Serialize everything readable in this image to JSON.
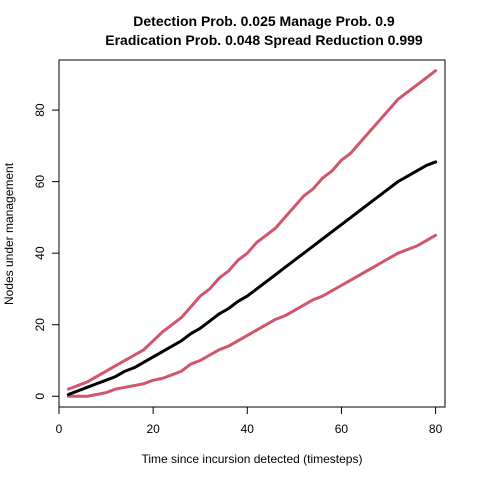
{
  "chart_data": {
    "type": "line",
    "title_lines": [
      "Detection Prob. 0.025 Manage Prob. 0.9",
      "Eradication Prob. 0.048 Spread Reduction 0.999"
    ],
    "xlabel": "Time since incursion detected (timesteps)",
    "ylabel": "Nodes under management",
    "xlim": [
      0,
      82
    ],
    "ylim": [
      -3,
      94
    ],
    "xticks": [
      0,
      20,
      40,
      60,
      80
    ],
    "yticks": [
      0,
      20,
      40,
      60,
      80
    ],
    "grid": false,
    "colors": {
      "bounds": "#D1566B",
      "median": "#000000"
    },
    "series": [
      {
        "role": "upper",
        "color": "#D1566B",
        "x": [
          2,
          4,
          6,
          8,
          10,
          12,
          14,
          16,
          18,
          20,
          22,
          24,
          26,
          28,
          30,
          32,
          34,
          36,
          38,
          40,
          42,
          44,
          46,
          48,
          50,
          52,
          54,
          56,
          58,
          60,
          62,
          64,
          66,
          68,
          70,
          72,
          74,
          76,
          78,
          80
        ],
        "values": [
          2,
          3,
          4,
          5.5,
          7,
          8.5,
          10,
          11.5,
          13,
          15.5,
          18,
          20,
          22,
          25,
          28,
          30,
          33,
          35,
          38,
          40,
          43,
          45,
          47,
          50,
          53,
          56,
          58,
          61,
          63,
          66,
          68,
          71,
          74,
          77,
          80,
          83,
          85,
          87,
          89,
          91
        ]
      },
      {
        "role": "median",
        "color": "#000000",
        "x": [
          2,
          4,
          6,
          8,
          10,
          12,
          14,
          16,
          18,
          20,
          22,
          24,
          26,
          28,
          30,
          32,
          34,
          36,
          38,
          40,
          42,
          44,
          46,
          48,
          50,
          52,
          54,
          56,
          58,
          60,
          62,
          64,
          66,
          68,
          70,
          72,
          74,
          76,
          78,
          80
        ],
        "values": [
          0.5,
          1.5,
          2.5,
          3.5,
          4.5,
          5.5,
          7,
          8,
          9.5,
          11,
          12.5,
          14,
          15.5,
          17.5,
          19,
          21,
          23,
          24.5,
          26.5,
          28,
          30,
          32,
          34,
          36,
          38,
          40,
          42,
          44,
          46,
          48,
          50,
          52,
          54,
          56,
          58,
          60,
          61.5,
          63,
          64.5,
          65.5
        ]
      },
      {
        "role": "lower",
        "color": "#D1566B",
        "x": [
          2,
          4,
          6,
          8,
          10,
          12,
          14,
          16,
          18,
          20,
          22,
          24,
          26,
          28,
          30,
          32,
          34,
          36,
          38,
          40,
          42,
          44,
          46,
          48,
          50,
          52,
          54,
          56,
          58,
          60,
          62,
          64,
          66,
          68,
          70,
          72,
          74,
          76,
          78,
          80
        ],
        "values": [
          0,
          0,
          0,
          0.5,
          1,
          2,
          2.5,
          3,
          3.5,
          4.5,
          5,
          6,
          7,
          9,
          10,
          11.5,
          13,
          14,
          15.5,
          17,
          18.5,
          20,
          21.5,
          22.5,
          24,
          25.5,
          27,
          28,
          29.5,
          31,
          32.5,
          34,
          35.5,
          37,
          38.5,
          40,
          41,
          42,
          43.5,
          45
        ]
      }
    ]
  }
}
